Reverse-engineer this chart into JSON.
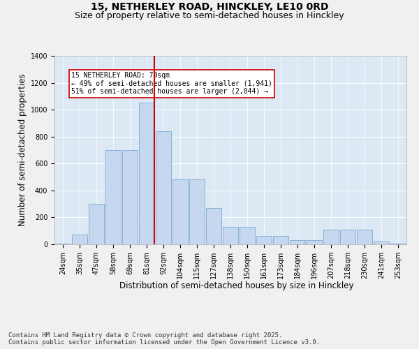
{
  "title_line1": "15, NETHERLEY ROAD, HINCKLEY, LE10 0RD",
  "title_line2": "Size of property relative to semi-detached houses in Hinckley",
  "xlabel": "Distribution of semi-detached houses by size in Hinckley",
  "ylabel": "Number of semi-detached properties",
  "categories": [
    "24sqm",
    "35sqm",
    "47sqm",
    "58sqm",
    "69sqm",
    "81sqm",
    "92sqm",
    "104sqm",
    "115sqm",
    "127sqm",
    "138sqm",
    "150sqm",
    "161sqm",
    "173sqm",
    "184sqm",
    "196sqm",
    "207sqm",
    "218sqm",
    "230sqm",
    "241sqm",
    "253sqm"
  ],
  "values": [
    5,
    75,
    300,
    700,
    700,
    1050,
    840,
    480,
    480,
    270,
    130,
    130,
    60,
    60,
    30,
    30,
    110,
    110,
    110,
    20,
    5
  ],
  "bar_color": "#c5d8f0",
  "bar_edge_color": "#7aaad0",
  "vline_index": 5,
  "vline_color": "#cc0000",
  "annotation_text": "15 NETHERLEY ROAD: 79sqm\n← 49% of semi-detached houses are smaller (1,941)\n51% of semi-detached houses are larger (2,044) →",
  "annotation_box_color": "#ffffff",
  "annotation_box_edge": "#cc0000",
  "ylim": [
    0,
    1400
  ],
  "yticks": [
    0,
    200,
    400,
    600,
    800,
    1000,
    1200,
    1400
  ],
  "footer_text": "Contains HM Land Registry data © Crown copyright and database right 2025.\nContains public sector information licensed under the Open Government Licence v3.0.",
  "plot_bg_color": "#dde8f5",
  "fig_bg_color": "#f0f0f0",
  "title_fontsize": 10,
  "subtitle_fontsize": 9,
  "axis_label_fontsize": 8.5,
  "tick_fontsize": 7,
  "footer_fontsize": 6.5,
  "annotation_fontsize": 7
}
